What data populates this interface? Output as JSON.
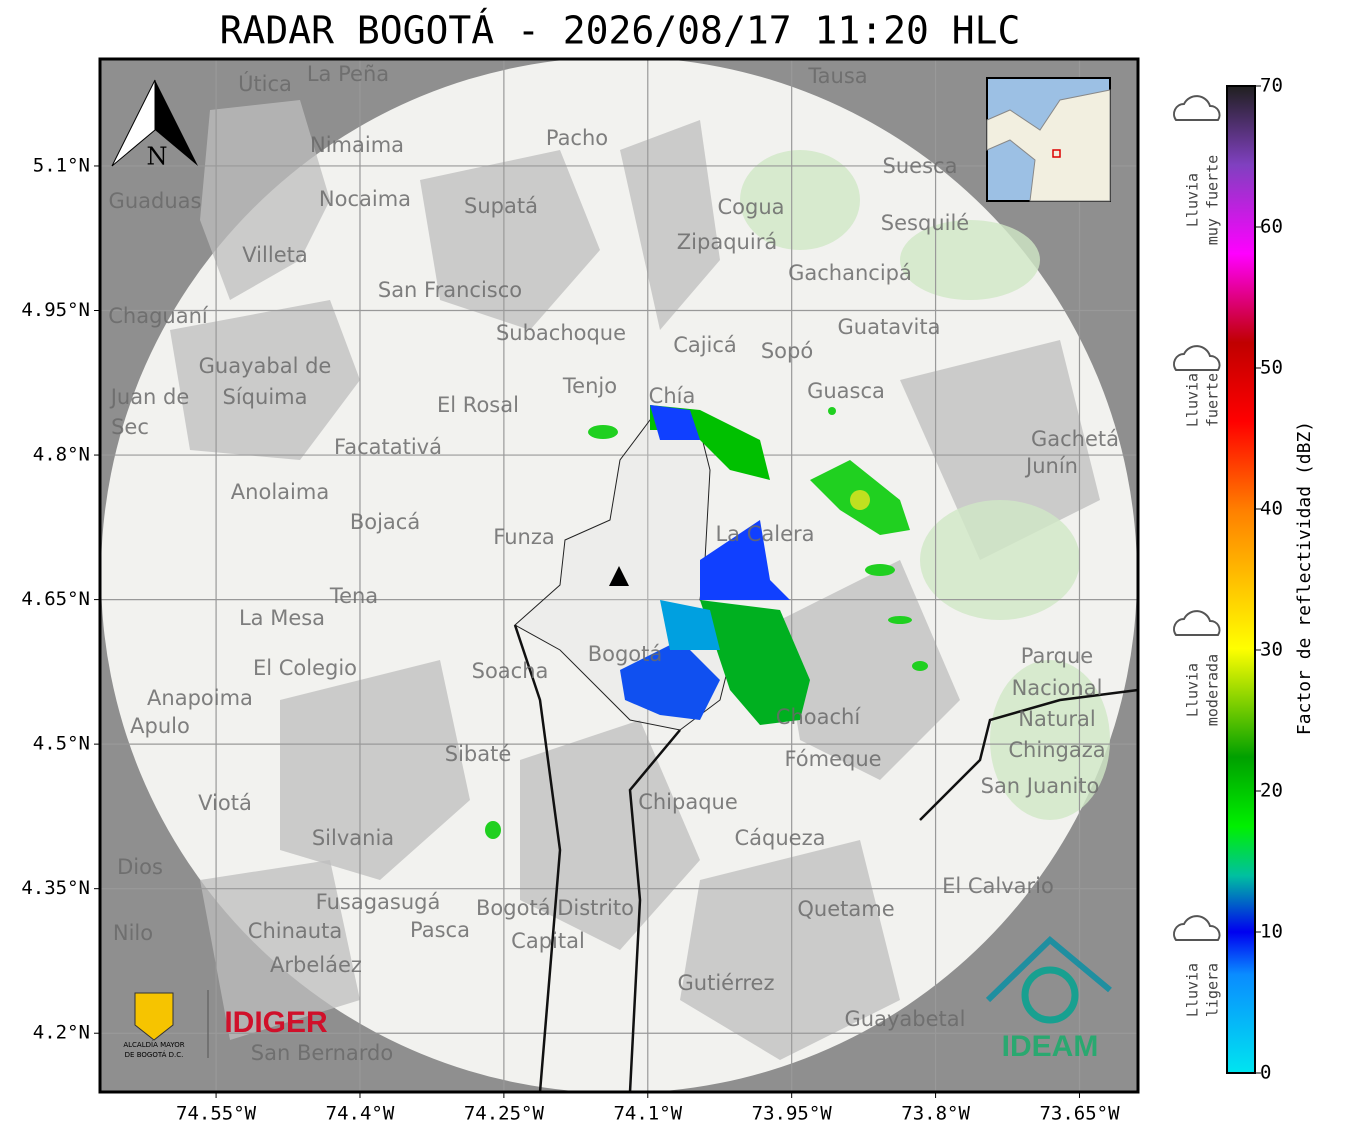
{
  "map": {
    "title": "RADAR BOGOTÁ - 2026/08/17 11:20 HLC",
    "xlim": [
      -74.671,
      -73.589
    ],
    "ylim": [
      4.139,
      5.211
    ],
    "lon_ticks": [
      {
        "value": -74.55,
        "label": "74.55°W"
      },
      {
        "value": -74.4,
        "label": "74.4°W"
      },
      {
        "value": -74.25,
        "label": "74.25°W"
      },
      {
        "value": -74.1,
        "label": "74.1°W"
      },
      {
        "value": -73.95,
        "label": "73.95°W"
      },
      {
        "value": -73.8,
        "label": "73.8°W"
      },
      {
        "value": -73.65,
        "label": "73.65°W"
      }
    ],
    "lat_ticks": [
      {
        "value": 5.1,
        "label": "5.1°N"
      },
      {
        "value": 4.95,
        "label": "4.95°N"
      },
      {
        "value": 4.8,
        "label": "4.8°N"
      },
      {
        "value": 4.65,
        "label": "4.65°N"
      },
      {
        "value": 4.5,
        "label": "4.5°N"
      },
      {
        "value": 4.35,
        "label": "4.35°N"
      },
      {
        "value": 4.2,
        "label": "4.2°N"
      }
    ],
    "north": "N",
    "places": [
      "La Peña",
      "Útica",
      "Tausa",
      "Pacho",
      "Nimaima",
      "Guaduas",
      "Nocaima",
      "Supatá",
      "Suesca",
      "Cogua",
      "Zipaquirá",
      "Sesquilé",
      "Villeta",
      "San Francisco",
      "Gachancipá",
      "Chaguaní",
      "Guatavita",
      "Subachoque",
      "Cajicá",
      "Sopó",
      "Tenjo",
      "Chía",
      "Guasca",
      "El Rosal",
      "Facatativá",
      "Gachetá",
      "Junín",
      "Anolaima",
      "Bojacá",
      "Funza",
      "La Calera",
      "Tena",
      "La Mesa",
      "El Colegio",
      "Soacha",
      "Anapoima",
      "Apulo",
      "Choachí",
      "Fómeque",
      "Sibaté",
      "San Juanito",
      "Viotá",
      "Chipaque",
      "Silvania",
      "Cáqueza",
      "Dios",
      "El Calvario",
      "Fusagasugá",
      "Bogotá Distrito",
      "Capital",
      "Quetame",
      "Nilo",
      "Chinauta",
      "Pasca",
      "Arbeláez",
      "Gutiérrez",
      "Guayabetal",
      "San Bernardo",
      "Bogotá",
      "Parque",
      "Nacional",
      "Natural",
      "Chingaza",
      "Guayabal de",
      "Síquima",
      "Juan de",
      "Sec"
    ]
  },
  "colorbar": {
    "label": "Factor de reflectividad (dBZ)",
    "lim": [
      0,
      70
    ],
    "ticks": [
      0,
      10,
      20,
      30,
      40,
      50,
      60,
      70
    ]
  },
  "rain_levels": [
    [
      "Lluvia",
      "muy fuerte"
    ],
    [
      "Lluvia",
      "fuerte"
    ],
    [
      "Lluvia",
      "moderada"
    ],
    [
      "Lluvia",
      "ligera"
    ]
  ],
  "logos": {
    "alcaldia": [
      "ALCALDÍA MAYOR",
      "DE BOGOTÁ D.C."
    ],
    "idiger": "IDIGER",
    "ideam": "IDEAM"
  }
}
